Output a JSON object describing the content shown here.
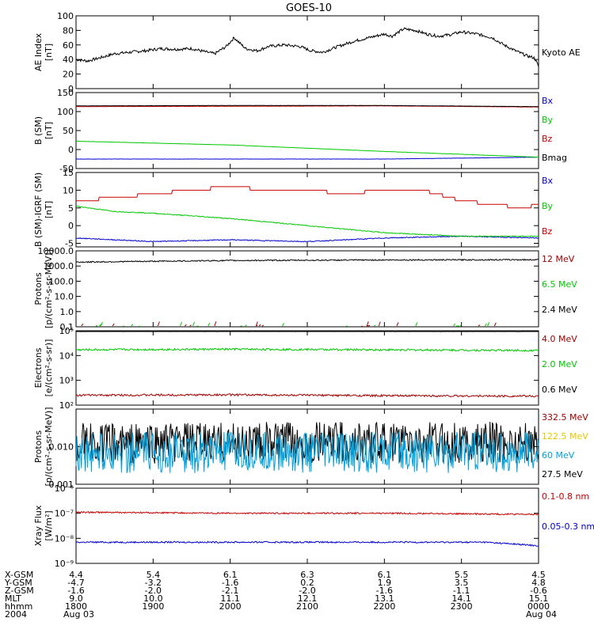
{
  "title": "GOES-10",
  "colors": {
    "black": "#000000",
    "red": "#c80000",
    "green": "#00c800",
    "blue": "#0000d2",
    "yellow": "#e6c800",
    "cyan": "#00a0dc",
    "darkred": "#a00000"
  },
  "panels": [
    {
      "ylabel": [
        "AE Index",
        "[nT]"
      ],
      "yticks": [
        "100",
        "80",
        "60",
        "40",
        "20",
        "0"
      ],
      "legend": [
        {
          "text": "Kyoto AE",
          "color": "black"
        }
      ]
    },
    {
      "ylabel": [
        "B (SM)",
        "[nT]"
      ],
      "yticks": [
        "150",
        "100",
        "50",
        "0",
        "-50"
      ],
      "legend": [
        {
          "text": "Bx",
          "color": "blue"
        },
        {
          "text": "By",
          "color": "green"
        },
        {
          "text": "Bz",
          "color": "red"
        },
        {
          "text": "Bmag",
          "color": "black"
        }
      ]
    },
    {
      "ylabel": [
        "B (SM)-IGRF (SM)",
        "[nT]"
      ],
      "yticks": [
        "15",
        "10",
        "5",
        "0",
        "-5"
      ],
      "legend": [
        {
          "text": "Bx",
          "color": "blue"
        },
        {
          "text": "By",
          "color": "green"
        },
        {
          "text": "Bz",
          "color": "red"
        }
      ]
    },
    {
      "ylabel": [
        "Protons",
        "[p/(cm²-s-sr-MeV)]"
      ],
      "yticks": [
        "10000.0",
        "1000.0",
        "100.0",
        "10.0",
        "1.0",
        "0.1"
      ],
      "legend": [
        {
          "text": "12 MeV",
          "color": "darkred"
        },
        {
          "text": "6.5 MeV",
          "color": "green"
        },
        {
          "text": "2.4 MeV",
          "color": "black"
        }
      ]
    },
    {
      "ylabel": [
        "Electrons",
        "[e/(cm²-s-sr)]"
      ],
      "yticks": [
        "10⁵",
        "10⁴",
        "10³",
        "10²"
      ],
      "legend": [
        {
          "text": "4.0 MeV",
          "color": "darkred"
        },
        {
          "text": "2.0 MeV",
          "color": "green"
        },
        {
          "text": "0.6 MeV",
          "color": "black"
        }
      ]
    },
    {
      "ylabel": [
        "Protons",
        "[p/(cm²-s-sr-MeV)]"
      ],
      "yticks": [
        "0.010",
        "0.001"
      ],
      "legend": [
        {
          "text": "332.5 MeV",
          "color": "darkred"
        },
        {
          "text": "122.5 MeV",
          "color": "yellow"
        },
        {
          "text": "60 MeV",
          "color": "cyan"
        },
        {
          "text": "27.5 MeV",
          "color": "black"
        }
      ]
    },
    {
      "ylabel": [
        "Xray Flux",
        "[W/m²]"
      ],
      "yticks": [
        "10⁻⁶",
        "10⁻⁷",
        "10⁻⁸",
        "10⁻⁹"
      ],
      "legend": [
        {
          "text": "0.1-0.8 nm",
          "color": "red"
        },
        {
          "text": "0.05-0.3 nm",
          "color": "blue"
        }
      ]
    }
  ],
  "xaxis": {
    "row_labels": [
      "X-GSM",
      "Y-GSM",
      "Z-GSM",
      "MLT",
      "hhmm",
      "2004"
    ],
    "columns": [
      {
        "values": [
          "4.4",
          "-4.7",
          "-1.6",
          "9.0",
          "1800",
          "Aug 03"
        ]
      },
      {
        "values": [
          "5.4",
          "-3.2",
          "-2.0",
          "10.0",
          "1900",
          ""
        ]
      },
      {
        "values": [
          "6.1",
          "-1.6",
          "-2.1",
          "11.1",
          "2000",
          ""
        ]
      },
      {
        "values": [
          "6.3",
          "0.2",
          "-2.0",
          "12.1",
          "2100",
          ""
        ]
      },
      {
        "values": [
          "6.1",
          "1.9",
          "-1.6",
          "13.1",
          "2200",
          ""
        ]
      },
      {
        "values": [
          "5.5",
          "3.5",
          "-1.1",
          "14.1",
          "2300",
          ""
        ]
      },
      {
        "values": [
          "4.5",
          "4.8",
          "-0.6",
          "15.1",
          "0000",
          "Aug 04"
        ]
      }
    ]
  },
  "chart_data": [
    {
      "type": "line",
      "x_range_hours": [
        18,
        24
      ],
      "ylabel": "AE Index [nT]",
      "ylim": [
        0,
        100
      ],
      "series": [
        {
          "name": "Kyoto AE",
          "color": "black",
          "x": [
            18.0,
            18.15,
            18.3,
            18.5,
            18.7,
            18.9,
            19.1,
            19.3,
            19.5,
            19.7,
            19.8,
            19.95,
            20.05,
            20.2,
            20.35,
            20.5,
            20.7,
            20.9,
            21.05,
            21.2,
            21.4,
            21.6,
            21.8,
            22.0,
            22.1,
            22.25,
            22.4,
            22.55,
            22.7,
            22.85,
            23.0,
            23.2,
            23.4,
            23.55,
            23.7,
            23.85,
            23.95,
            24.0
          ],
          "y": [
            40,
            38,
            42,
            48,
            50,
            52,
            55,
            54,
            55,
            50,
            48,
            58,
            70,
            55,
            52,
            58,
            60,
            58,
            52,
            50,
            58,
            65,
            70,
            75,
            72,
            82,
            80,
            75,
            72,
            74,
            78,
            75,
            70,
            60,
            52,
            45,
            42,
            30
          ]
        }
      ]
    },
    {
      "type": "line",
      "x_range_hours": [
        18,
        24
      ],
      "ylabel": "B (SM) [nT]",
      "ylim": [
        -50,
        150
      ],
      "series": [
        {
          "name": "Bx",
          "color": "blue",
          "x": [
            18,
            20,
            22,
            24
          ],
          "y": [
            -25,
            -25,
            -25,
            -20
          ]
        },
        {
          "name": "By",
          "color": "green",
          "x": [
            18,
            20,
            22,
            24
          ],
          "y": [
            22,
            12,
            -5,
            -20
          ]
        },
        {
          "name": "Bz",
          "color": "red",
          "x": [
            18,
            20,
            22,
            24
          ],
          "y": [
            113,
            114,
            115,
            112
          ]
        },
        {
          "name": "Bmag",
          "color": "black",
          "x": [
            18,
            20,
            22,
            24
          ],
          "y": [
            115,
            116,
            116,
            113
          ]
        }
      ]
    },
    {
      "type": "line",
      "x_range_hours": [
        18,
        24
      ],
      "ylabel": "B (SM)-IGRF (SM) [nT]",
      "ylim": [
        -6,
        15
      ],
      "series": [
        {
          "name": "Bx",
          "color": "blue",
          "x": [
            18,
            19,
            20,
            21,
            22,
            23,
            24
          ],
          "y": [
            -3.5,
            -4.5,
            -4.0,
            -4.5,
            -3.5,
            -3.0,
            -3.5
          ]
        },
        {
          "name": "By",
          "color": "green",
          "x": [
            18,
            18.5,
            19,
            20,
            21,
            22,
            23,
            24
          ],
          "y": [
            5.5,
            4.0,
            3.5,
            2.0,
            0.0,
            -2.0,
            -3.0,
            -3.0
          ]
        },
        {
          "name": "Bz",
          "color": "red",
          "x": [
            18,
            18.6,
            19.0,
            19.5,
            20.0,
            20.5,
            21.0,
            21.5,
            22.0,
            22.5,
            23.0,
            23.4,
            23.8,
            24.0
          ],
          "y": [
            7,
            8,
            9,
            10,
            11,
            10,
            10,
            9,
            10,
            10,
            7,
            6,
            5,
            6
          ]
        }
      ]
    },
    {
      "type": "line",
      "x_range_hours": [
        18,
        24
      ],
      "ylabel": "Protons [p/(cm²-s-sr-MeV)]",
      "yscale": "log",
      "ylim": [
        0.1,
        10000
      ],
      "series": [
        {
          "name": "2.4 MeV",
          "color": "black",
          "x": [
            18,
            20,
            22,
            24
          ],
          "y": [
            1800,
            2300,
            2500,
            2600
          ]
        },
        {
          "name": "6.5 MeV",
          "color": "green",
          "x": [],
          "y": []
        },
        {
          "name": "12 MeV",
          "color": "darkred",
          "x": [],
          "y": []
        }
      ]
    },
    {
      "type": "line",
      "x_range_hours": [
        18,
        24
      ],
      "ylabel": "Electrons [e/(cm²-s-sr)]",
      "yscale": "log",
      "ylim": [
        100,
        100000
      ],
      "series": [
        {
          "name": "0.6 MeV",
          "color": "black",
          "x": [
            18,
            24
          ],
          "y": [
            100000,
            100000
          ]
        },
        {
          "name": "2.0 MeV",
          "color": "green",
          "x": [
            18,
            20,
            22,
            24
          ],
          "y": [
            17000,
            18000,
            17000,
            16000
          ]
        },
        {
          "name": "4.0 MeV",
          "color": "darkred",
          "x": [
            18,
            20,
            22,
            24
          ],
          "y": [
            250,
            260,
            240,
            230
          ]
        }
      ]
    },
    {
      "type": "line",
      "x_range_hours": [
        18,
        24
      ],
      "ylabel": "Protons [p/(cm²-s-sr-MeV)]",
      "yscale": "log",
      "ylim": [
        0.001,
        0.1
      ],
      "series": [
        {
          "name": "27.5 MeV",
          "color": "black",
          "x": [
            18,
            20,
            22,
            24
          ],
          "y": [
            0.012,
            0.013,
            0.013,
            0.013
          ]
        },
        {
          "name": "60 MeV",
          "color": "cyan",
          "x": [
            18,
            20,
            22,
            24
          ],
          "y": [
            0.007,
            0.007,
            0.007,
            0.007
          ]
        },
        {
          "name": "122.5 MeV",
          "color": "yellow",
          "x": [],
          "y": []
        },
        {
          "name": "332.5 MeV",
          "color": "darkred",
          "x": [],
          "y": []
        }
      ]
    },
    {
      "type": "line",
      "x_range_hours": [
        18,
        24
      ],
      "ylabel": "Xray Flux [W/m²]",
      "yscale": "log",
      "ylim": [
        1e-09,
        1e-06
      ],
      "series": [
        {
          "name": "0.1-0.8 nm",
          "color": "red",
          "x": [
            18,
            20,
            22,
            24
          ],
          "y": [
            1.1e-07,
            1e-07,
            1e-07,
            9e-08
          ]
        },
        {
          "name": "0.05-0.3 nm",
          "color": "blue",
          "x": [
            18,
            20,
            22,
            23.3,
            24
          ],
          "y": [
            7e-09,
            7e-09,
            7e-09,
            7e-09,
            5e-09
          ]
        }
      ]
    }
  ]
}
